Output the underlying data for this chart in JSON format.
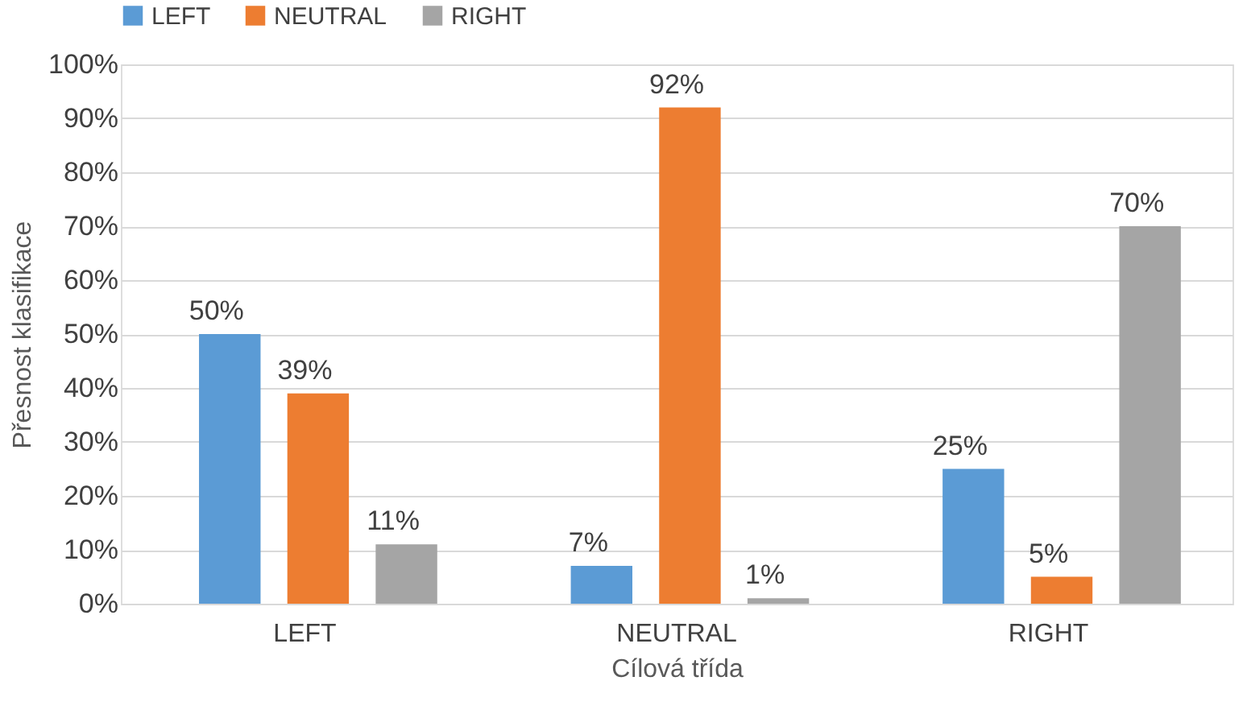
{
  "chart_data": {
    "type": "bar",
    "xlabel": "Cílová třída",
    "ylabel": "Přesnost klasifikace",
    "categories": [
      "LEFT",
      "NEUTRAL",
      "RIGHT"
    ],
    "series": [
      {
        "name": "LEFT",
        "color": "#5b9bd5",
        "values": [
          50,
          7,
          25
        ],
        "value_labels": [
          "50%",
          "7%",
          "25%"
        ]
      },
      {
        "name": "NEUTRAL",
        "color": "#ed7d31",
        "values": [
          39,
          92,
          5
        ],
        "value_labels": [
          "39%",
          "92%",
          "5%"
        ]
      },
      {
        "name": "RIGHT",
        "color": "#a5a5a5",
        "values": [
          11,
          1,
          70
        ],
        "value_labels": [
          "11%",
          "1%",
          "70%"
        ]
      }
    ],
    "ylim": [
      0,
      100
    ],
    "yticks": [
      {
        "value": 0,
        "label": "0%"
      },
      {
        "value": 10,
        "label": "10%"
      },
      {
        "value": 20,
        "label": "20%"
      },
      {
        "value": 30,
        "label": "30%"
      },
      {
        "value": 40,
        "label": "40%"
      },
      {
        "value": 50,
        "label": "50%"
      },
      {
        "value": 60,
        "label": "60%"
      },
      {
        "value": 70,
        "label": "70%"
      },
      {
        "value": 80,
        "label": "80%"
      },
      {
        "value": 90,
        "label": "90%"
      },
      {
        "value": 100,
        "label": "100%"
      }
    ],
    "grid": "y",
    "legend": "top"
  }
}
